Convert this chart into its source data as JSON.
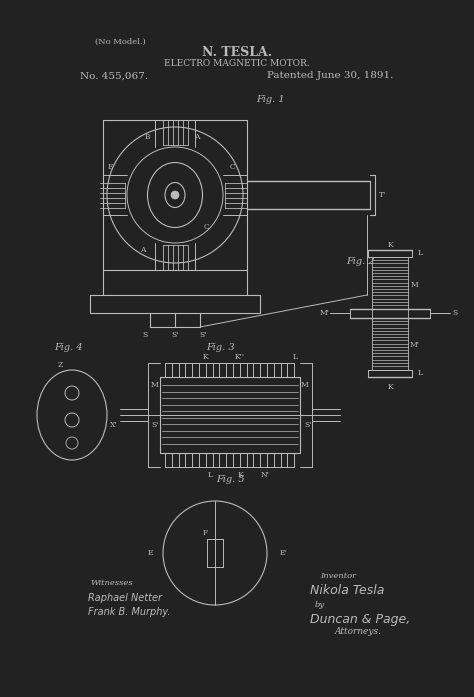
{
  "bg_color": "#222222",
  "line_color": "#bbbbbb",
  "text_color": "#bbbbbb",
  "title_line1": "N. TESLA.",
  "title_line2": "ELECTRO MAGNETIC MOTOR.",
  "patent_no": "No. 455,067.",
  "patent_date": "Patented June 30, 1891.",
  "no_model": "(No Model.)",
  "fig1_label": "Fig. 1",
  "fig2_label": "Fig. 2",
  "fig3_label": "Fig. 3",
  "fig4_label": "Fig. 4",
  "fig5_label": "Fig. 5",
  "witnesses_label": "Witnesses",
  "witness1": "Raphael Netter",
  "witness2": "Frank B. Murphy.",
  "inventor_label": "Inventor",
  "inventor_name": "Nikola Tesla",
  "by_text": "by",
  "attorney_name": "Duncan & Page,",
  "attorney_label": "Attorneys."
}
